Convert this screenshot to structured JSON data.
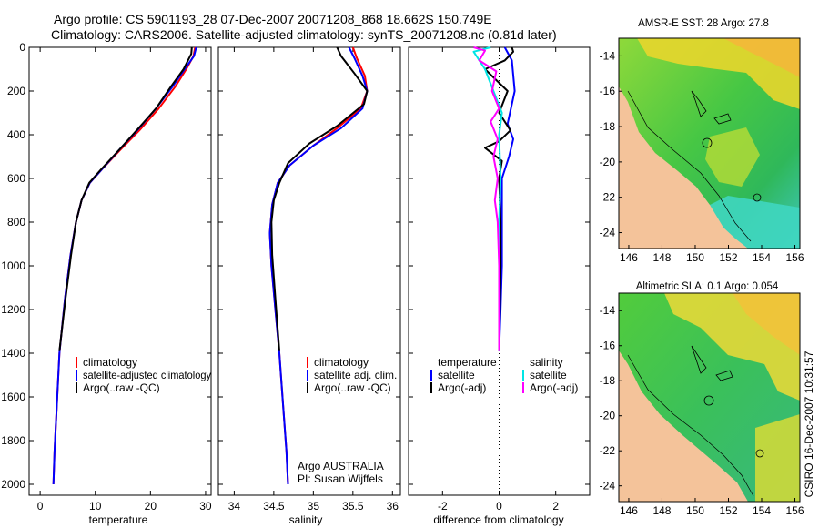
{
  "header": {
    "line1": "Argo profile: CS 5901193_28 07-Dec-2007 20071208_868 18.662S 150.749E",
    "line2": "Climatology: CARS2006. Satellite-adjusted climatology: synTS_20071208.nc (0.81d later)"
  },
  "side_label": "CSIRO 16-Dec-2007 10:31:57",
  "colors": {
    "climatology": "#ff0000",
    "satellite": "#0000ff",
    "argo": "#000000",
    "salinity_satellite": "#00e5e5",
    "salinity_argo": "#ff00ff",
    "land": "#f4c39a",
    "sea_green": "#2fc24a",
    "sea_yellow": "#f0dc2a",
    "sea_cyan": "#3fd6c0"
  },
  "chart_data": [
    {
      "type": "line",
      "xlabel": "temperature",
      "ylabel": "",
      "xlim": [
        -2,
        31
      ],
      "ylim": [
        2050,
        0
      ],
      "xticks": [
        0,
        10,
        20,
        30
      ],
      "yticks": [
        0,
        200,
        400,
        600,
        800,
        1000,
        1200,
        1400,
        1600,
        1800,
        2000
      ],
      "series": [
        {
          "name": "climatology",
          "color": "red",
          "points": [
            [
              28.1,
              0
            ],
            [
              27.8,
              40
            ],
            [
              26.5,
              100
            ],
            [
              24.5,
              180
            ],
            [
              21.5,
              280
            ],
            [
              18.0,
              380
            ],
            [
              14.5,
              470
            ],
            [
              11.5,
              550
            ],
            [
              9.0,
              620
            ],
            [
              7.5,
              700
            ],
            [
              6.5,
              800
            ],
            [
              5.5,
              950
            ],
            [
              4.5,
              1150
            ],
            [
              3.5,
              1400
            ],
            [
              3.0,
              1650
            ],
            [
              2.6,
              1850
            ],
            [
              2.4,
              2000
            ]
          ]
        },
        {
          "name": "satellite-adjusted climatology",
          "color": "blue",
          "points": [
            [
              28.3,
              0
            ],
            [
              27.9,
              40
            ],
            [
              26.2,
              100
            ],
            [
              24.0,
              180
            ],
            [
              21.0,
              280
            ],
            [
              17.6,
              380
            ],
            [
              14.3,
              470
            ],
            [
              11.5,
              550
            ],
            [
              9.0,
              620
            ],
            [
              7.5,
              700
            ],
            [
              6.5,
              800
            ],
            [
              5.5,
              950
            ],
            [
              4.5,
              1150
            ],
            [
              3.5,
              1400
            ],
            [
              3.0,
              1650
            ],
            [
              2.6,
              1850
            ],
            [
              2.4,
              2000
            ]
          ]
        },
        {
          "name": "Argo(..raw -QC)",
          "color": "black",
          "points": [
            [
              27.5,
              0
            ],
            [
              27.4,
              30
            ],
            [
              26.0,
              100
            ],
            [
              23.7,
              180
            ],
            [
              21.0,
              280
            ],
            [
              17.5,
              380
            ],
            [
              14.3,
              470
            ],
            [
              11.0,
              560
            ],
            [
              8.9,
              620
            ],
            [
              7.5,
              700
            ],
            [
              6.5,
              800
            ],
            [
              5.6,
              950
            ],
            [
              4.6,
              1150
            ],
            [
              3.5,
              1390
            ]
          ]
        }
      ],
      "legend": [
        "climatology",
        "satellite-adjusted climatology",
        "Argo(..raw -QC)"
      ]
    },
    {
      "type": "line",
      "xlabel": "salinity",
      "xlim": [
        33.8,
        36.1
      ],
      "ylim": [
        2050,
        0
      ],
      "xticks": [
        34,
        34.5,
        35,
        35.5,
        36
      ],
      "series": [
        {
          "name": "climatology",
          "color": "red",
          "points": [
            [
              35.5,
              0
            ],
            [
              35.55,
              50
            ],
            [
              35.65,
              130
            ],
            [
              35.68,
              200
            ],
            [
              35.6,
              280
            ],
            [
              35.3,
              370
            ],
            [
              35.0,
              450
            ],
            [
              34.7,
              540
            ],
            [
              34.55,
              620
            ],
            [
              34.48,
              720
            ],
            [
              34.45,
              850
            ],
            [
              34.47,
              1000
            ],
            [
              34.52,
              1200
            ],
            [
              34.57,
              1400
            ],
            [
              34.62,
              1650
            ],
            [
              34.66,
              1850
            ],
            [
              34.68,
              2000
            ]
          ]
        },
        {
          "name": "satellite adj. clim.",
          "color": "blue",
          "points": [
            [
              35.45,
              0
            ],
            [
              35.52,
              50
            ],
            [
              35.62,
              130
            ],
            [
              35.68,
              200
            ],
            [
              35.62,
              280
            ],
            [
              35.35,
              370
            ],
            [
              35.0,
              450
            ],
            [
              34.7,
              540
            ],
            [
              34.55,
              620
            ],
            [
              34.48,
              720
            ],
            [
              34.45,
              850
            ],
            [
              34.47,
              1000
            ],
            [
              34.52,
              1200
            ],
            [
              34.57,
              1400
            ],
            [
              34.62,
              1650
            ],
            [
              34.66,
              1850
            ],
            [
              34.68,
              2000
            ]
          ]
        },
        {
          "name": "Argo(..raw -QC)",
          "color": "black",
          "points": [
            [
              35.3,
              0
            ],
            [
              35.35,
              40
            ],
            [
              35.52,
              120
            ],
            [
              35.68,
              200
            ],
            [
              35.64,
              260
            ],
            [
              35.3,
              360
            ],
            [
              34.95,
              440
            ],
            [
              34.68,
              530
            ],
            [
              34.57,
              620
            ],
            [
              34.5,
              700
            ],
            [
              34.47,
              800
            ],
            [
              34.48,
              950
            ],
            [
              34.52,
              1150
            ],
            [
              34.57,
              1390
            ]
          ]
        }
      ],
      "legend": [
        "climatology",
        "satellite adj. clim.",
        "Argo(..raw -QC)"
      ],
      "annotation": [
        "Argo AUSTRALIA",
        "PI: Susan Wijffels"
      ]
    },
    {
      "type": "line",
      "xlabel": "difference from climatology",
      "xlim": [
        -3.2,
        3.2
      ],
      "ylim": [
        2050,
        0
      ],
      "xticks": [
        -2,
        0,
        2
      ],
      "series": [
        {
          "name": "temperature satellite",
          "color": "blue",
          "points": [
            [
              0.2,
              0
            ],
            [
              0.45,
              60
            ],
            [
              0.55,
              200
            ],
            [
              0.3,
              350
            ],
            [
              0.5,
              420
            ],
            [
              0.35,
              500
            ],
            [
              0.1,
              600
            ],
            [
              0.1,
              800
            ],
            [
              0.1,
              1000
            ],
            [
              0.05,
              1200
            ],
            [
              0.0,
              1390
            ]
          ]
        },
        {
          "name": "temperature Argo(-adj)",
          "color": "black",
          "points": [
            [
              0.45,
              0
            ],
            [
              0.5,
              20
            ],
            [
              0.2,
              60
            ],
            [
              -0.5,
              100
            ],
            [
              -0.1,
              150
            ],
            [
              0.3,
              200
            ],
            [
              0.0,
              300
            ],
            [
              0.4,
              380
            ],
            [
              0.0,
              430
            ],
            [
              -0.5,
              460
            ],
            [
              0.1,
              520
            ],
            [
              0.0,
              600
            ],
            [
              0.05,
              800
            ],
            [
              0.05,
              1000
            ],
            [
              0.0,
              1390
            ]
          ]
        },
        {
          "name": "salinity satellite",
          "color": "cyan",
          "points": [
            [
              -0.3,
              0
            ],
            [
              -0.9,
              20
            ],
            [
              -0.5,
              100
            ],
            [
              -0.2,
              200
            ],
            [
              0.1,
              300
            ],
            [
              0.0,
              400
            ],
            [
              0.05,
              600
            ],
            [
              0.0,
              800
            ],
            [
              0.0,
              1000
            ],
            [
              0.0,
              1390
            ]
          ]
        },
        {
          "name": "salinity Argo(-adj)",
          "color": "magenta",
          "points": [
            [
              -0.9,
              0
            ],
            [
              -0.5,
              15
            ],
            [
              -0.7,
              60
            ],
            [
              -0.1,
              110
            ],
            [
              -0.25,
              200
            ],
            [
              0.0,
              280
            ],
            [
              -0.3,
              340
            ],
            [
              -0.05,
              420
            ],
            [
              -0.2,
              500
            ],
            [
              -0.05,
              600
            ],
            [
              -0.15,
              700
            ],
            [
              -0.05,
              800
            ],
            [
              0.0,
              1000
            ],
            [
              0.0,
              1390
            ]
          ]
        }
      ],
      "legend_headers": [
        "temperature",
        "salinity"
      ],
      "legend_left": [
        "satellite",
        "Argo(-adj)"
      ],
      "legend_right": [
        "satellite",
        "Argo(-adj)"
      ]
    }
  ],
  "maps": [
    {
      "title": "AMSR-E SST: 28 Argo: 27.8",
      "xticks": [
        "146",
        "148",
        "150",
        "152",
        "154",
        "156"
      ],
      "yticks": [
        "-14",
        "-16",
        "-18",
        "-20",
        "-22",
        "-24"
      ]
    },
    {
      "title": "Altimetric SLA: 0.1 Argo: 0.054",
      "xticks": [
        "146",
        "148",
        "150",
        "152",
        "154",
        "156"
      ],
      "yticks": [
        "-14",
        "-16",
        "-18",
        "-20",
        "-22",
        "-24"
      ]
    }
  ]
}
